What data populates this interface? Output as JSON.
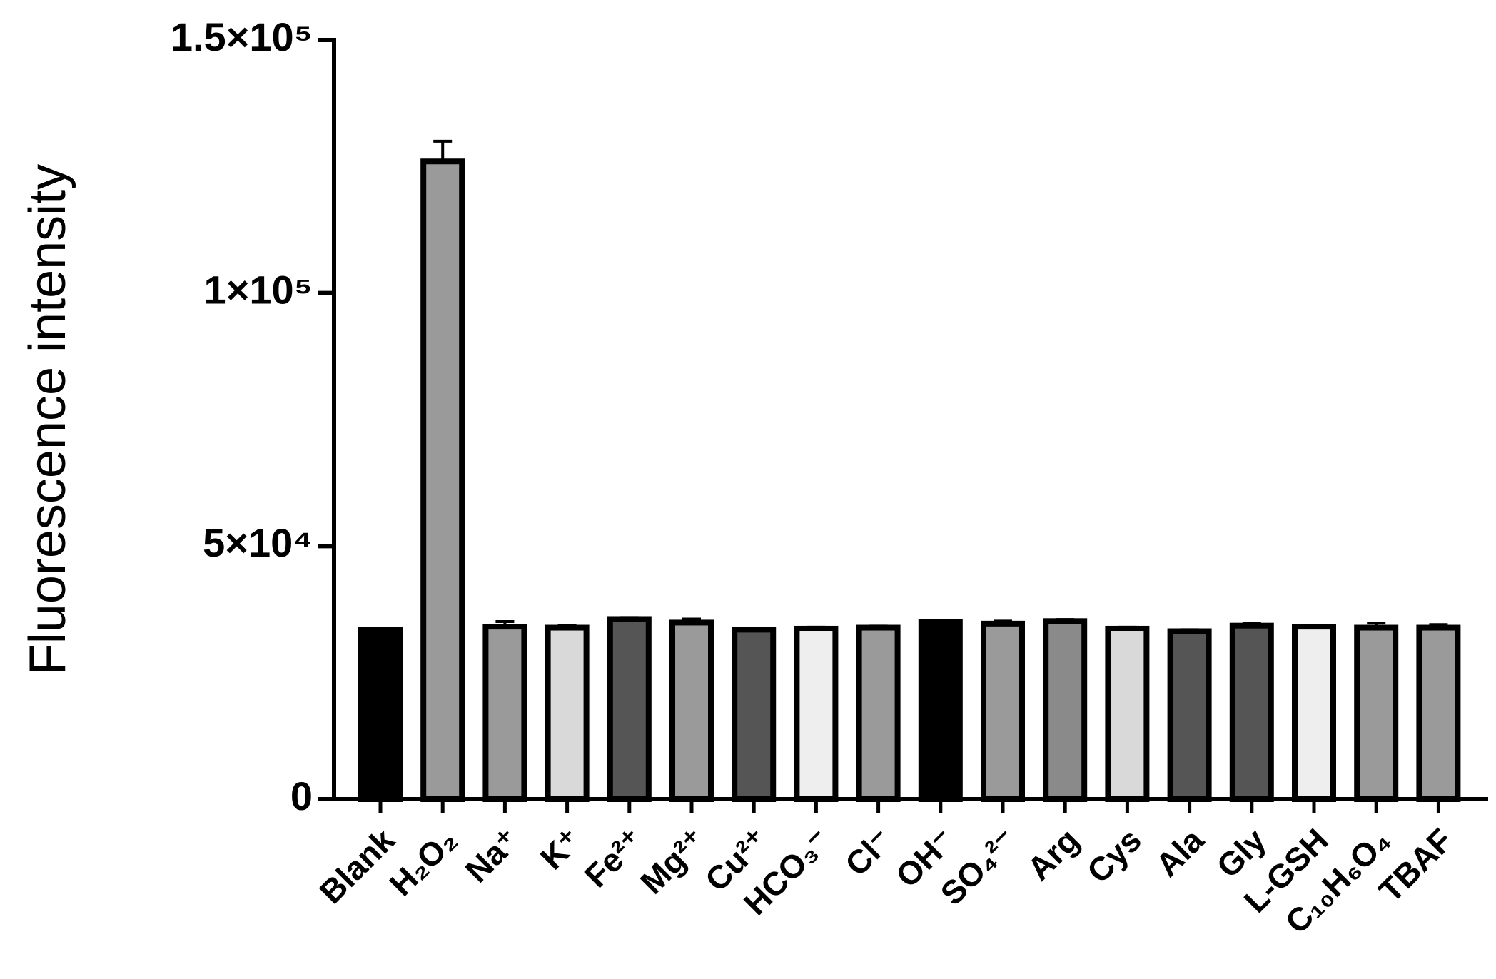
{
  "chart_data": {
    "type": "bar",
    "y_label": "Fluorescence intensity",
    "categories": [
      "Blank",
      "H₂O₂",
      "Na⁺",
      "K⁺",
      "Fe²⁺",
      "Mg²⁺",
      "Cu²⁺",
      "HCO₃⁻",
      "Cl⁻",
      "OH⁻",
      "SO₄²⁻",
      "Arg",
      "Cys",
      "Ala",
      "Gly",
      "L-GSH",
      "C₁₀H₆O₄",
      "TBAF"
    ],
    "values": [
      33500,
      126000,
      34100,
      33900,
      35600,
      34900,
      33500,
      33700,
      33900,
      35000,
      34700,
      35200,
      33700,
      33200,
      34300,
      34100,
      33900,
      33900
    ],
    "errors": [
      300,
      4000,
      1000,
      500,
      300,
      700,
      300,
      300,
      300,
      300,
      500,
      300,
      300,
      300,
      500,
      300,
      900,
      600
    ],
    "colors": [
      "#000000",
      "#9a9a9a",
      "#9a9a9a",
      "#d9d9d9",
      "#555555",
      "#9a9a9a",
      "#555555",
      "#eeeeee",
      "#9a9a9a",
      "#000000",
      "#9a9a9a",
      "#8a8a8a",
      "#d9d9d9",
      "#555555",
      "#555555",
      "#eeeeee",
      "#9a9a9a",
      "#9a9a9a"
    ],
    "ylim": [
      0,
      150000
    ],
    "yticks": [
      0,
      {
        "value": 50000,
        "label": "5×10⁴"
      },
      {
        "value": 100000,
        "label": "1×10⁵"
      },
      {
        "value": 150000,
        "label": "1.5×10⁵"
      }
    ],
    "grid": false
  }
}
